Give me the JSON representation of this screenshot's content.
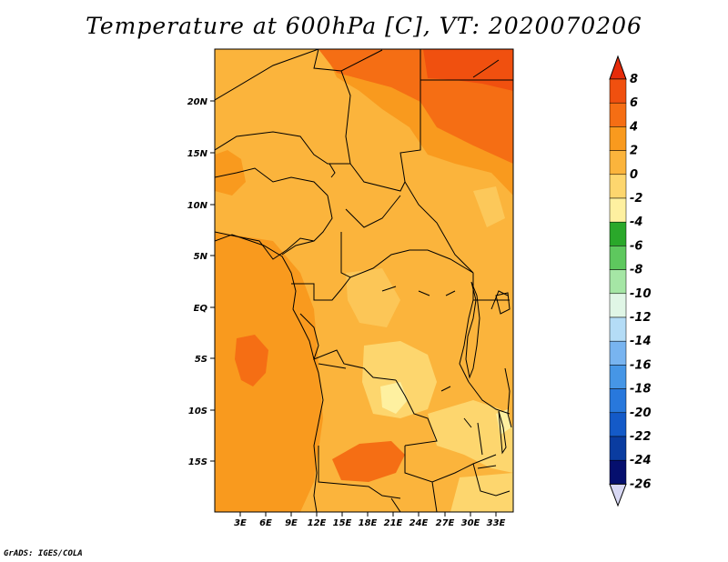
{
  "title": "Temperature at 600hPa [C], VT: 2020070206",
  "footer": "GrADS: IGES/COLA",
  "map": {
    "lat_ticks": [
      "20N",
      "15N",
      "10N",
      "5N",
      "EQ",
      "5S",
      "10S",
      "15S"
    ],
    "lon_ticks": [
      "3E",
      "6E",
      "9E",
      "12E",
      "15E",
      "18E",
      "21E",
      "24E",
      "27E",
      "30E",
      "33E"
    ]
  },
  "colorbar": {
    "labels": [
      "8",
      "6",
      "4",
      "2",
      "0",
      "-2",
      "-4",
      "-6",
      "-8",
      "-10",
      "-12",
      "-14",
      "-16",
      "-18",
      "-20",
      "-22",
      "-24",
      "-26"
    ],
    "colors": [
      "#e62b0a",
      "#f0500f",
      "#f56e14",
      "#f99a1e",
      "#fbb43c",
      "#fdd66e",
      "#fef0a0",
      "#2aa82a",
      "#5ec85e",
      "#a5e6a5",
      "#e0f6e6",
      "#b4dcf6",
      "#78b4f0",
      "#4696e6",
      "#2878dc",
      "#145ac8",
      "#0a3ca0",
      "#050f6e",
      "#d8d8f4"
    ]
  },
  "colors": {
    "bg_orange": "#fbb43c",
    "deep_orange": "#f99a1e",
    "hot_orange": "#f56e14",
    "red_orange": "#f0500f",
    "yellow": "#fdd66e",
    "pale": "#fef0a0"
  }
}
